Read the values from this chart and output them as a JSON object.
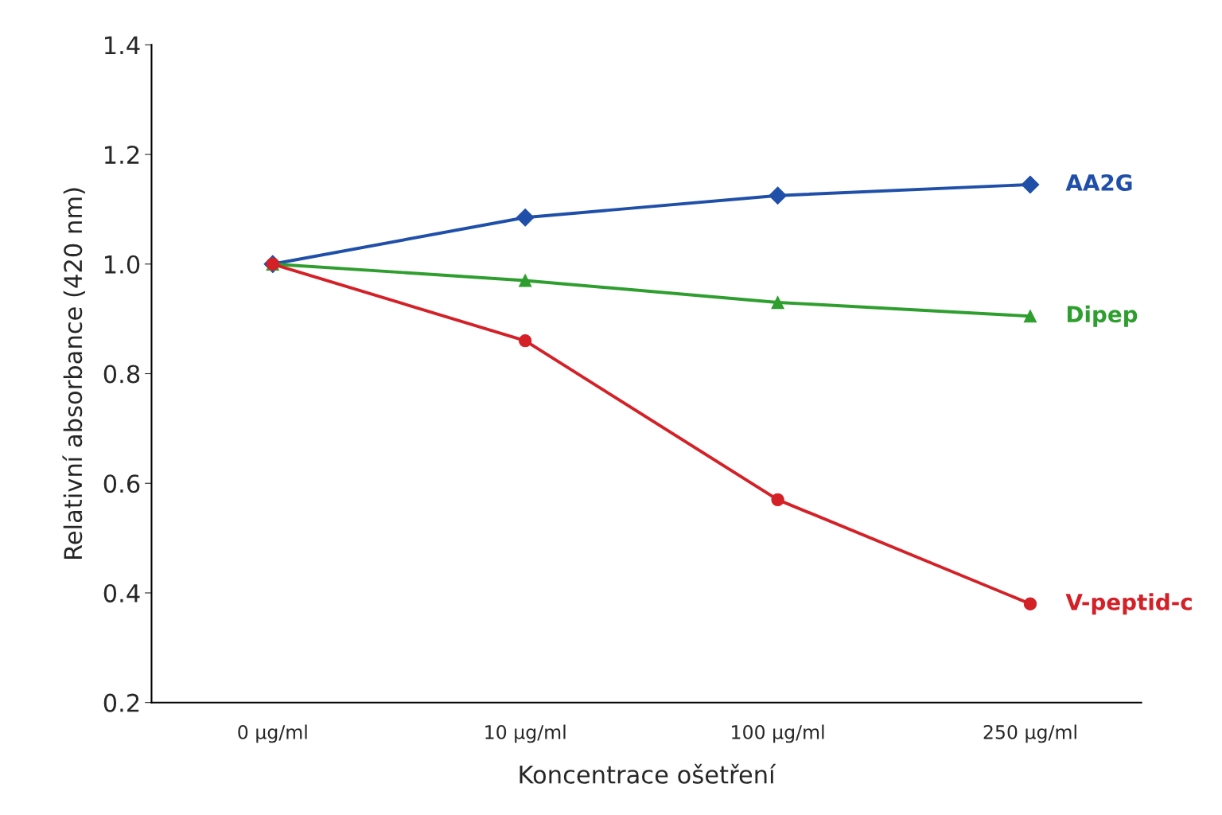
{
  "chart_data": {
    "type": "line",
    "ylabel": "Relativní absorbance (420 nm)",
    "xlabel": "Koncentrace ošetření",
    "categories": [
      "0 µg/ml",
      "10 µg/ml",
      "100 µg/ml",
      "250 µg/ml"
    ],
    "series": [
      {
        "name": "AA2G",
        "color": "#1f4fa8",
        "marker": "diamond",
        "values": [
          1.0,
          1.085,
          1.125,
          1.145
        ]
      },
      {
        "name": "Dipep",
        "color": "#2e9e2e",
        "marker": "triangle",
        "values": [
          1.0,
          0.97,
          0.93,
          0.905
        ]
      },
      {
        "name": "V-peptid-c",
        "color": "#d42027",
        "marker": "circle",
        "values": [
          1.0,
          0.86,
          0.57,
          0.38
        ]
      }
    ],
    "ylim": [
      0.2,
      1.4
    ],
    "yticks": [
      0.2,
      0.4,
      0.6,
      0.8,
      {
        "value": 1,
        "label": "1.0"
      },
      1.2,
      1.4
    ],
    "grid": false,
    "legend": false,
    "line_style": "solid"
  }
}
